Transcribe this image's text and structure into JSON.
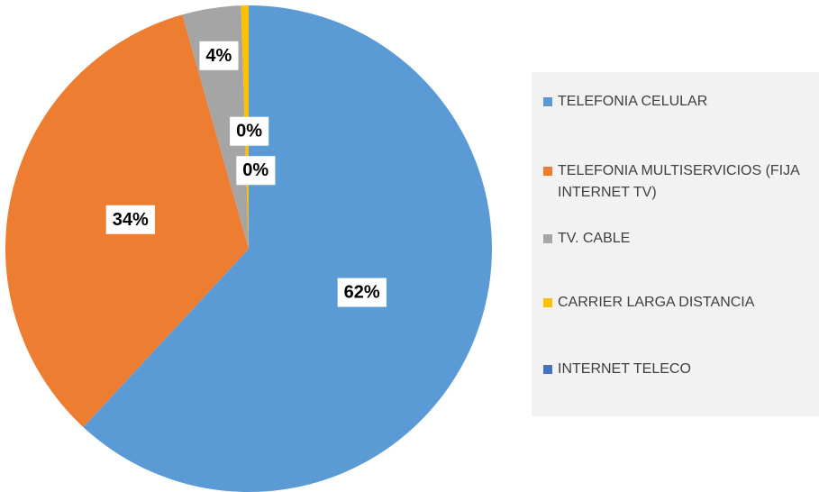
{
  "chart_data": {
    "type": "pie",
    "categories": [
      "TELEFONIA CELULAR",
      "TELEFONIA MULTISERVICIOS (FIJA INTERNET TV)",
      "TV. CABLE",
      "CARRIER LARGA DISTANCIA",
      "INTERNET TELECO"
    ],
    "values": [
      61.9,
      33.7,
      3.9,
      0.5,
      0.0
    ],
    "value_labels": [
      "62%",
      "34%",
      "4%",
      "0%",
      "0%"
    ],
    "colors": [
      "#5b9bd5",
      "#ed7d31",
      "#a5a5a5",
      "#ffc000",
      "#4472c4"
    ],
    "legend": "right"
  }
}
